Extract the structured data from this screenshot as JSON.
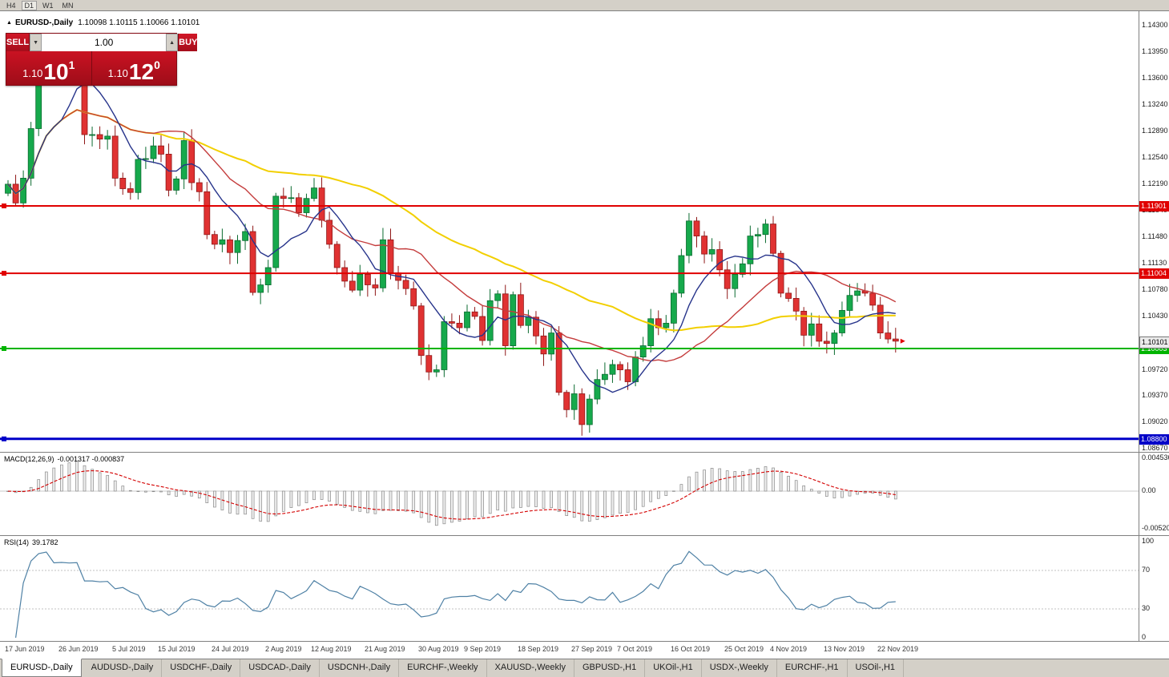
{
  "timeframe_toolbar": {
    "buttons": [
      "H4",
      "D1",
      "W1",
      "MN"
    ],
    "active": "D1"
  },
  "icons": {
    "collapse": "▲",
    "spinner_up": "▲",
    "spinner_down": "▼"
  },
  "chart_header": {
    "symbol": "EURUSD-,Daily",
    "ohlc": "1.10098 1.10115 1.10066 1.10101"
  },
  "trade_panel": {
    "sell_label": "SELL",
    "buy_label": "BUY",
    "volume": "1.00",
    "sell_price": {
      "small": "1.10",
      "big": "10",
      "sup": "1"
    },
    "buy_price": {
      "small": "1.10",
      "big": "12",
      "sup": "0"
    }
  },
  "price_scale": {
    "ticks": [
      "1.14300",
      "1.13950",
      "1.13600",
      "1.13240",
      "1.12890",
      "1.12540",
      "1.12190",
      "1.11840",
      "1.11480",
      "1.11130",
      "1.10780",
      "1.10430",
      "1.10080",
      "1.09720",
      "1.09370",
      "1.09020",
      "1.08670"
    ],
    "current_price": {
      "value": 1.10101,
      "label": "1.10101"
    }
  },
  "hlines": [
    {
      "price": 1.11901,
      "label": "1.11901",
      "color": "#e00000",
      "width": 2
    },
    {
      "price": 1.11004,
      "label": "1.11004",
      "color": "#e00000",
      "width": 2
    },
    {
      "price": 1.10003,
      "label": "1.10003",
      "color": "#00b400",
      "width": 2
    },
    {
      "price": 1.088,
      "label": "1.08800",
      "color": "#0000c8",
      "width": 3
    }
  ],
  "macd_panel": {
    "label": "MACD(12,26,9)",
    "values": "-0.001317 -0.000837",
    "scale": [
      "0.004536",
      "0.00",
      "-0.005205"
    ]
  },
  "rsi_panel": {
    "label": "RSI(14)",
    "value": "39.1782",
    "scale": [
      "100",
      "70",
      "30",
      "0"
    ],
    "levels": [
      70,
      30
    ]
  },
  "date_axis": {
    "labels": [
      {
        "i": 0,
        "t": "17 Jun 2019"
      },
      {
        "i": 7,
        "t": "26 Jun 2019"
      },
      {
        "i": 14,
        "t": "5 Jul 2019"
      },
      {
        "i": 20,
        "t": "15 Jul 2019"
      },
      {
        "i": 27,
        "t": "24 Jul 2019"
      },
      {
        "i": 34,
        "t": "2 Aug 2019"
      },
      {
        "i": 40,
        "t": "12 Aug 2019"
      },
      {
        "i": 47,
        "t": "21 Aug 2019"
      },
      {
        "i": 54,
        "t": "30 Aug 2019"
      },
      {
        "i": 60,
        "t": "9 Sep 2019"
      },
      {
        "i": 67,
        "t": "18 Sep 2019"
      },
      {
        "i": 74,
        "t": "27 Sep 2019"
      },
      {
        "i": 80,
        "t": "7 Oct 2019"
      },
      {
        "i": 87,
        "t": "16 Oct 2019"
      },
      {
        "i": 94,
        "t": "25 Oct 2019"
      },
      {
        "i": 100,
        "t": "4 Nov 2019"
      },
      {
        "i": 107,
        "t": "13 Nov 2019"
      },
      {
        "i": 114,
        "t": "22 Nov 2019"
      }
    ]
  },
  "tabs": [
    {
      "label": "EURUSD-,Daily",
      "active": true
    },
    {
      "label": "AUDUSD-,Daily",
      "active": false
    },
    {
      "label": "USDCHF-,Daily",
      "active": false
    },
    {
      "label": "USDCAD-,Daily",
      "active": false
    },
    {
      "label": "USDCNH-,Daily",
      "active": false
    },
    {
      "label": "EURCHF-,Weekly",
      "active": false
    },
    {
      "label": "XAUUSD-,Weekly",
      "active": false
    },
    {
      "label": "GBPUSD-,H1",
      "active": false
    },
    {
      "label": "UKOil-,H1",
      "active": false
    },
    {
      "label": "USDX-,Weekly",
      "active": false
    },
    {
      "label": "EURCHF-,H1",
      "active": false
    },
    {
      "label": "USOil-,H1",
      "active": false
    }
  ],
  "colors": {
    "bull": "#16a94c",
    "bull_border": "#0b6b30",
    "bear": "#e03232",
    "bear_border": "#8f1717",
    "rsi_line": "#4f81a5",
    "macd_signal": "#d40000",
    "macd_hist_fill": "#efefef",
    "macd_hist_stroke": "#8a8a8a"
  },
  "chart_data": {
    "type": "candlestick",
    "symbol": "EURUSD-,Daily",
    "closes": [
      1.1219,
      1.1194,
      1.1227,
      1.1293,
      1.1368,
      1.1399,
      1.1366,
      1.1371,
      1.1369,
      1.1373,
      1.1285,
      1.1285,
      1.1279,
      1.1283,
      1.1227,
      1.1213,
      1.1208,
      1.1252,
      1.1253,
      1.127,
      1.1259,
      1.1211,
      1.1226,
      1.1277,
      1.1221,
      1.1209,
      1.1152,
      1.1139,
      1.1145,
      1.1128,
      1.1144,
      1.1156,
      1.1075,
      1.1085,
      1.1108,
      1.1203,
      1.12,
      1.1201,
      1.1181,
      1.12,
      1.1214,
      1.1171,
      1.1139,
      1.1108,
      1.109,
      1.1078,
      1.1099,
      1.1085,
      1.1081,
      1.1145,
      1.1101,
      1.1091,
      1.108,
      1.1057,
      1.0991,
      1.0969,
      1.0972,
      1.1036,
      1.1034,
      1.1028,
      1.1049,
      1.1043,
      1.1011,
      1.1064,
      1.1073,
      1.1004,
      1.1072,
      1.1031,
      1.1042,
      1.1017,
      1.0993,
      1.1021,
      1.0942,
      1.0919,
      1.094,
      1.0899,
      1.0933,
      1.0959,
      1.0966,
      1.0979,
      1.0972,
      1.0956,
      1.0989,
      1.1004,
      1.104,
      1.1028,
      1.1034,
      1.1074,
      1.1124,
      1.117,
      1.115,
      1.1126,
      1.1132,
      1.1105,
      1.108,
      1.1099,
      1.1113,
      1.115,
      1.1152,
      1.1166,
      1.1127,
      1.1074,
      1.1067,
      1.105,
      1.1018,
      1.1033,
      1.101,
      1.1007,
      1.1021,
      1.1051,
      1.1071,
      1.1077,
      1.1074,
      1.1058,
      1.1021,
      1.1013,
      1.10101
    ],
    "ma": [
      {
        "period": 45,
        "color": "#f2cf00",
        "width": 2
      },
      {
        "period": 20,
        "color": "#c43c3c",
        "width": 1.4
      },
      {
        "period": 8,
        "color": "#27348b",
        "width": 1.4
      }
    ],
    "macd": {
      "fast": 12,
      "slow": 26,
      "signal": 9
    },
    "rsi_period": 14
  }
}
